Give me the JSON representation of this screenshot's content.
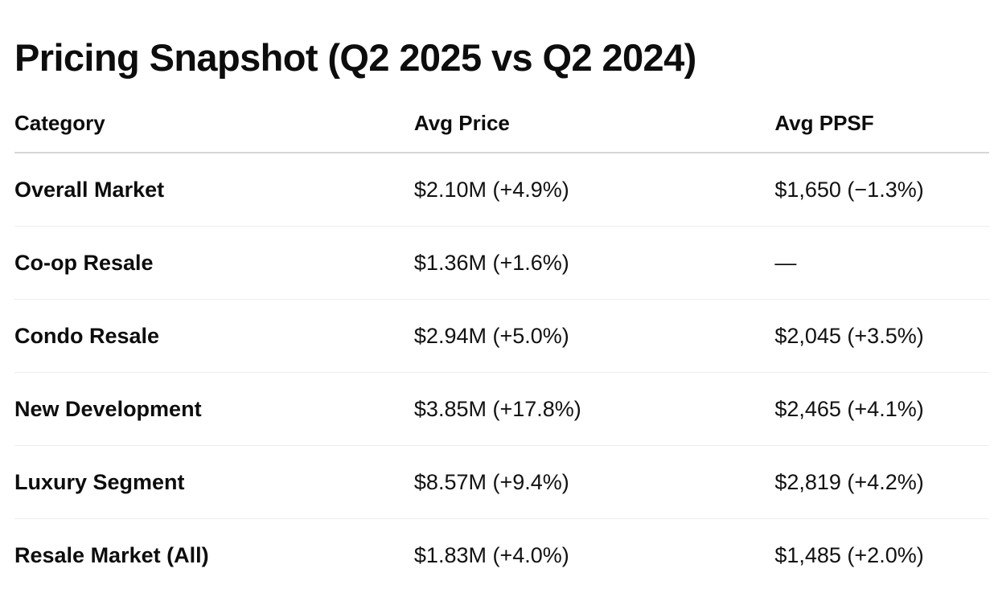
{
  "page": {
    "title": "Pricing Snapshot (Q2 2025 vs Q2 2024)"
  },
  "table": {
    "columns": [
      "Category",
      "Avg Price",
      "Avg PPSF"
    ],
    "rows": [
      {
        "category": "Overall Market",
        "avg_price": "$2.10M (+4.9%)",
        "avg_ppsf": "$1,650 (−1.3%)"
      },
      {
        "category": "Co-op Resale",
        "avg_price": "$1.36M (+1.6%)",
        "avg_ppsf": "—"
      },
      {
        "category": "Condo Resale",
        "avg_price": "$2.94M (+5.0%)",
        "avg_ppsf": "$2,045 (+3.5%)"
      },
      {
        "category": "New Development",
        "avg_price": "$3.85M (+17.8%)",
        "avg_ppsf": "$2,465 (+4.1%)"
      },
      {
        "category": "Luxury Segment",
        "avg_price": "$8.57M (+9.4%)",
        "avg_ppsf": "$2,819 (+4.2%)"
      },
      {
        "category": "Resale Market (All)",
        "avg_price": "$1.83M (+4.0%)",
        "avg_ppsf": "$1,485 (+2.0%)"
      }
    ]
  },
  "colors": {
    "background": "#ffffff",
    "text": "#111111",
    "header_divider": "#d6d6d6",
    "row_divider": "#eeeeee"
  }
}
